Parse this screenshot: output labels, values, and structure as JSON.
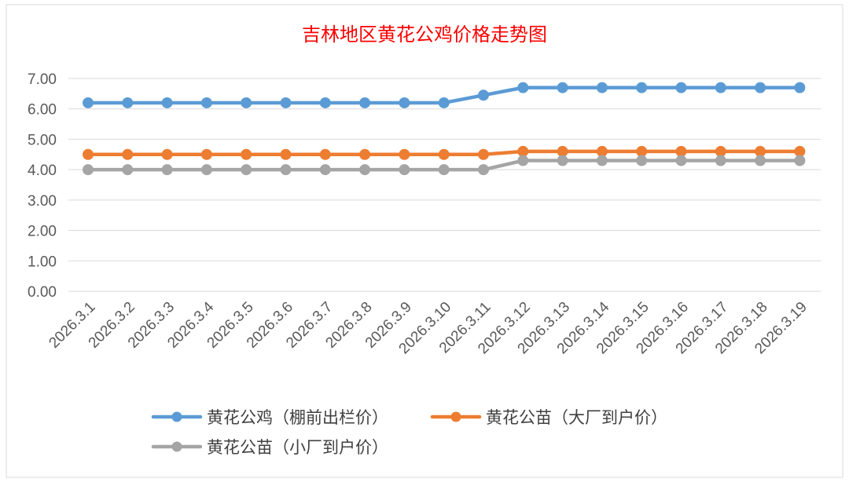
{
  "chart_data": {
    "type": "line",
    "title": "吉林地区黄花公鸡价格走势图",
    "xlabel": "",
    "ylabel": "",
    "ylim": [
      0,
      7
    ],
    "ytick_step": 1,
    "ytick_labels": [
      "0.00",
      "1.00",
      "2.00",
      "3.00",
      "4.00",
      "5.00",
      "6.00",
      "7.00"
    ],
    "grid": true,
    "legend_position": "bottom",
    "categories": [
      "2026.3.1",
      "2026.3.2",
      "2026.3.3",
      "2026.3.4",
      "2026.3.5",
      "2026.3.6",
      "2026.3.7",
      "2026.3.8",
      "2026.3.9",
      "2026.3.10",
      "2026.3.11",
      "2026.3.12",
      "2026.3.13",
      "2026.3.14",
      "2026.3.15",
      "2026.3.16",
      "2026.3.17",
      "2026.3.18",
      "2026.3.19"
    ],
    "series": [
      {
        "name": "黄花公鸡（棚前出栏价）",
        "color": "#5b9bd5",
        "values": [
          6.2,
          6.2,
          6.2,
          6.2,
          6.2,
          6.2,
          6.2,
          6.2,
          6.2,
          6.2,
          6.45,
          6.7,
          6.7,
          6.7,
          6.7,
          6.7,
          6.7,
          6.7,
          6.7
        ]
      },
      {
        "name": "黄花公苗（大厂到户价）",
        "color": "#ed7d31",
        "values": [
          4.5,
          4.5,
          4.5,
          4.5,
          4.5,
          4.5,
          4.5,
          4.5,
          4.5,
          4.5,
          4.5,
          4.6,
          4.6,
          4.6,
          4.6,
          4.6,
          4.6,
          4.6,
          4.6
        ]
      },
      {
        "name": "黄花公苗（小厂到户价）",
        "color": "#a5a5a5",
        "values": [
          4.0,
          4.0,
          4.0,
          4.0,
          4.0,
          4.0,
          4.0,
          4.0,
          4.0,
          4.0,
          4.0,
          4.3,
          4.3,
          4.3,
          4.3,
          4.3,
          4.3,
          4.3,
          4.3
        ]
      }
    ]
  }
}
